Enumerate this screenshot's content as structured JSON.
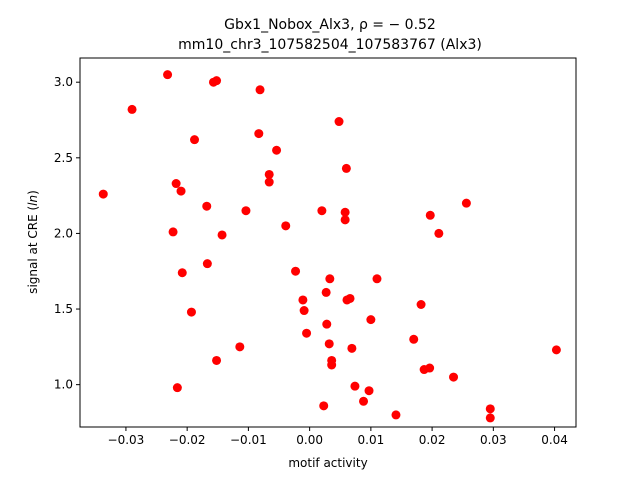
{
  "chart_data": {
    "type": "scatter",
    "title_line1": "Gbx1_Nobox_Alx3, ρ = − 0.52",
    "title_line2": "mm10_chr3_107582504_107583767 (Alx3)",
    "xlabel": "motif activity",
    "ylabel": "signal at CRE (ln)",
    "ylabel_parts": {
      "before": "signal at CRE (",
      "italic": "ln",
      "after": ")"
    },
    "xlim": [
      -0.0375,
      0.0435
    ],
    "ylim": [
      0.72,
      3.16
    ],
    "xticks": [
      -0.03,
      -0.02,
      -0.01,
      0.0,
      0.01,
      0.02,
      0.03,
      0.04
    ],
    "xtick_labels": [
      "−0.03",
      "−0.02",
      "−0.01",
      "0.00",
      "0.01",
      "0.02",
      "0.03",
      "0.04"
    ],
    "yticks": [
      1.0,
      1.5,
      2.0,
      2.5,
      3.0
    ],
    "ytick_labels": [
      "1.0",
      "1.5",
      "2.0",
      "2.5",
      "3.0"
    ],
    "marker_color": "#ff0000",
    "grid": false,
    "points": [
      {
        "x": -0.0337,
        "y": 2.26
      },
      {
        "x": -0.029,
        "y": 2.82
      },
      {
        "x": -0.0232,
        "y": 3.05
      },
      {
        "x": -0.0223,
        "y": 2.01
      },
      {
        "x": -0.0218,
        "y": 2.33
      },
      {
        "x": -0.0216,
        "y": 0.98
      },
      {
        "x": -0.021,
        "y": 2.28
      },
      {
        "x": -0.0208,
        "y": 1.74
      },
      {
        "x": -0.0193,
        "y": 1.48
      },
      {
        "x": -0.0188,
        "y": 2.62
      },
      {
        "x": -0.0168,
        "y": 2.18
      },
      {
        "x": -0.0167,
        "y": 1.8
      },
      {
        "x": -0.0157,
        "y": 3.0
      },
      {
        "x": -0.0152,
        "y": 3.01
      },
      {
        "x": -0.0152,
        "y": 1.16
      },
      {
        "x": -0.0143,
        "y": 1.99
      },
      {
        "x": -0.0114,
        "y": 1.25
      },
      {
        "x": -0.0104,
        "y": 2.15
      },
      {
        "x": -0.0083,
        "y": 2.66
      },
      {
        "x": -0.0081,
        "y": 2.95
      },
      {
        "x": -0.0066,
        "y": 2.39
      },
      {
        "x": -0.0066,
        "y": 2.34
      },
      {
        "x": -0.0054,
        "y": 2.55
      },
      {
        "x": -0.0039,
        "y": 2.05
      },
      {
        "x": -0.0023,
        "y": 1.75
      },
      {
        "x": -0.0011,
        "y": 1.56
      },
      {
        "x": -0.0009,
        "y": 1.49
      },
      {
        "x": -0.0005,
        "y": 1.34
      },
      {
        "x": 0.002,
        "y": 2.15
      },
      {
        "x": 0.0023,
        "y": 0.86
      },
      {
        "x": 0.0027,
        "y": 1.61
      },
      {
        "x": 0.0028,
        "y": 1.4
      },
      {
        "x": 0.0032,
        "y": 1.27
      },
      {
        "x": 0.0033,
        "y": 1.7
      },
      {
        "x": 0.0036,
        "y": 1.16
      },
      {
        "x": 0.0036,
        "y": 1.13
      },
      {
        "x": 0.0048,
        "y": 2.74
      },
      {
        "x": 0.0058,
        "y": 2.14
      },
      {
        "x": 0.0058,
        "y": 2.09
      },
      {
        "x": 0.006,
        "y": 2.43
      },
      {
        "x": 0.0061,
        "y": 1.56
      },
      {
        "x": 0.0066,
        "y": 1.57
      },
      {
        "x": 0.0069,
        "y": 1.24
      },
      {
        "x": 0.0074,
        "y": 0.99
      },
      {
        "x": 0.0088,
        "y": 0.89
      },
      {
        "x": 0.0097,
        "y": 0.96
      },
      {
        "x": 0.01,
        "y": 1.43
      },
      {
        "x": 0.011,
        "y": 1.7
      },
      {
        "x": 0.0141,
        "y": 0.8
      },
      {
        "x": 0.017,
        "y": 1.3
      },
      {
        "x": 0.0182,
        "y": 1.53
      },
      {
        "x": 0.0187,
        "y": 1.1
      },
      {
        "x": 0.0196,
        "y": 1.11
      },
      {
        "x": 0.0197,
        "y": 2.12
      },
      {
        "x": 0.0211,
        "y": 2.0
      },
      {
        "x": 0.0235,
        "y": 1.05
      },
      {
        "x": 0.0256,
        "y": 2.2
      },
      {
        "x": 0.0295,
        "y": 0.84
      },
      {
        "x": 0.0295,
        "y": 0.78
      },
      {
        "x": 0.0403,
        "y": 1.23
      }
    ]
  }
}
